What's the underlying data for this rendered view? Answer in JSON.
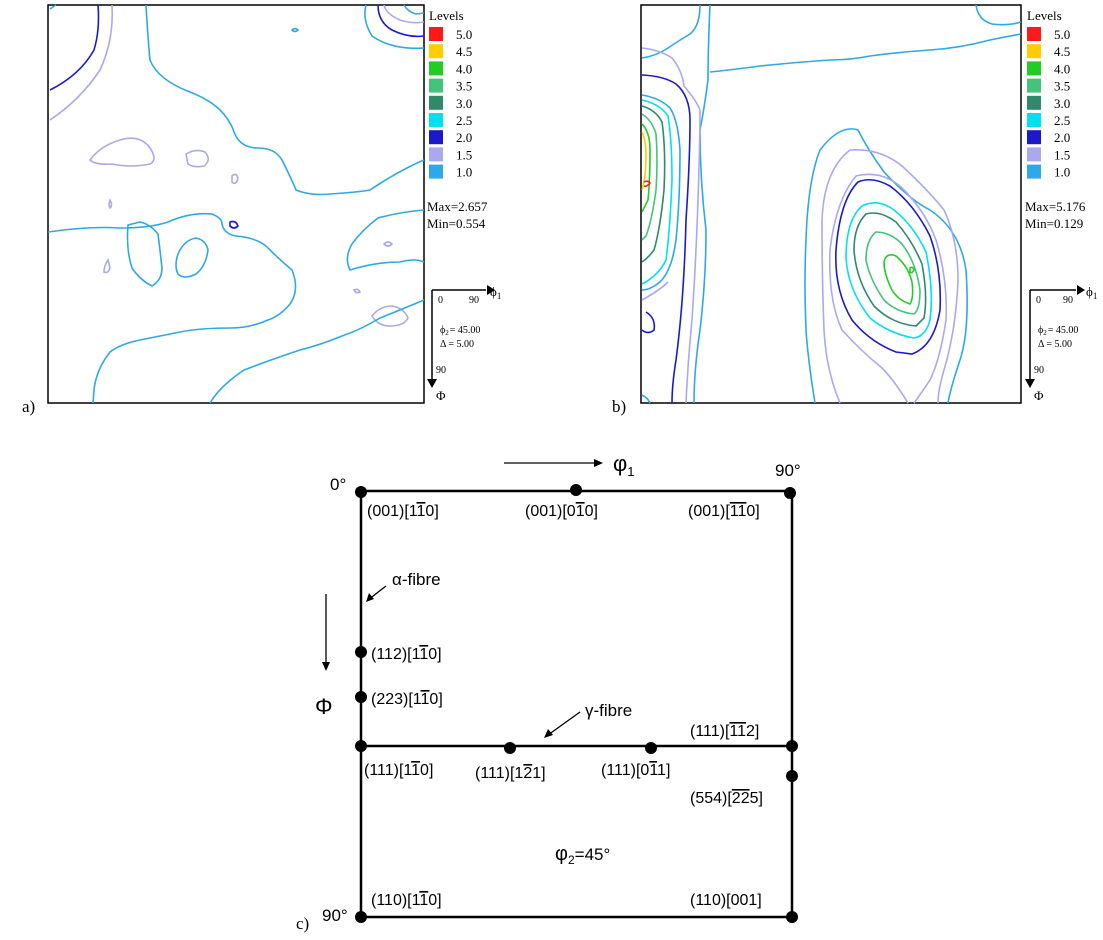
{
  "panel_a": {
    "label": "a)",
    "legend_title": "Levels",
    "levels": [
      {
        "value": "5.0",
        "color": "#ff1a1a"
      },
      {
        "value": "4.5",
        "color": "#ffcc00"
      },
      {
        "value": "4.0",
        "color": "#22cc22"
      },
      {
        "value": "3.5",
        "color": "#44c47a"
      },
      {
        "value": "3.0",
        "color": "#2f8a6a"
      },
      {
        "value": "2.5",
        "color": "#00e0f0"
      },
      {
        "value": "2.0",
        "color": "#1a1acc"
      },
      {
        "value": "1.5",
        "color": "#aaa8ee"
      },
      {
        "value": "1.0",
        "color": "#2ea8e8"
      }
    ],
    "max": "Max=2.657",
    "min": "Min=0.554",
    "axes": {
      "phi1": "ϕ",
      "phi1_sub": "1",
      "zero": "0",
      "ninety": "90",
      "ninety_v": "90",
      "Phi": "Φ",
      "phi2_line": "= 45.00",
      "phi2_sym": "ϕ",
      "phi2_sub": "2",
      "delta_line": "Δ = 5.00"
    }
  },
  "panel_b": {
    "label": "b)",
    "legend_title": "Levels",
    "levels": [
      {
        "value": "5.0",
        "color": "#ff1a1a"
      },
      {
        "value": "4.5",
        "color": "#ffcc00"
      },
      {
        "value": "4.0",
        "color": "#22cc22"
      },
      {
        "value": "3.5",
        "color": "#44c47a"
      },
      {
        "value": "3.0",
        "color": "#2f8a6a"
      },
      {
        "value": "2.5",
        "color": "#00e0f0"
      },
      {
        "value": "2.0",
        "color": "#1a1acc"
      },
      {
        "value": "1.5",
        "color": "#aaa8ee"
      },
      {
        "value": "1.0",
        "color": "#2ea8e8"
      }
    ],
    "max": "Max=5.176",
    "min": "Min=0.129",
    "axes": {
      "phi1": "ϕ",
      "phi1_sub": "1",
      "zero": "0",
      "ninety": "90",
      "ninety_v": "90",
      "Phi": "Φ",
      "phi2_line": "= 45.00",
      "phi2_sym": "ϕ",
      "phi2_sub": "2",
      "delta_line": "Δ = 5.00"
    }
  },
  "panel_c": {
    "label": "c)",
    "corner_0": "0°",
    "corner_90_top": "90°",
    "corner_90_left": "90°",
    "phi1_sym": "φ",
    "phi1_sub": "1",
    "Phi": "Φ",
    "alpha_fibre": "α-fibre",
    "gamma_fibre": "γ-fibre",
    "phi2_sym": "φ",
    "phi2_sub": "2",
    "phi2_value": "=45°",
    "orientations": [
      {
        "hkl": "(001)",
        "pre": "[1",
        "bar": "1",
        "post": "0]"
      },
      {
        "hkl": "(001)",
        "pre": "[0",
        "bar": "1",
        "post": "0]"
      },
      {
        "hkl": "(001)",
        "pre": "[",
        "bar": "11",
        "post": "0]"
      },
      {
        "hkl": "(112)",
        "pre": "[1",
        "bar": "1",
        "post": "0]"
      },
      {
        "hkl": "(223)",
        "pre": "[1",
        "bar": "1",
        "post": "0]"
      },
      {
        "hkl": "(111)",
        "pre": "[",
        "bar": "11",
        "post": "2]"
      },
      {
        "hkl": "(111)",
        "pre": "[1",
        "bar": "1",
        "post": "0]"
      },
      {
        "hkl": "(111)",
        "pre": "[1",
        "bar": "2",
        "post": "1]"
      },
      {
        "hkl": "(111)",
        "pre": "[0",
        "bar": "1",
        "post": "1]"
      },
      {
        "hkl": "(554)",
        "pre": "[",
        "bar": "22",
        "post": "5]"
      },
      {
        "hkl": "(110)",
        "pre": "[1",
        "bar": "1",
        "post": "0]"
      },
      {
        "hkl": "(110)",
        "pre": "[001]",
        "bar": "",
        "post": ""
      }
    ]
  }
}
